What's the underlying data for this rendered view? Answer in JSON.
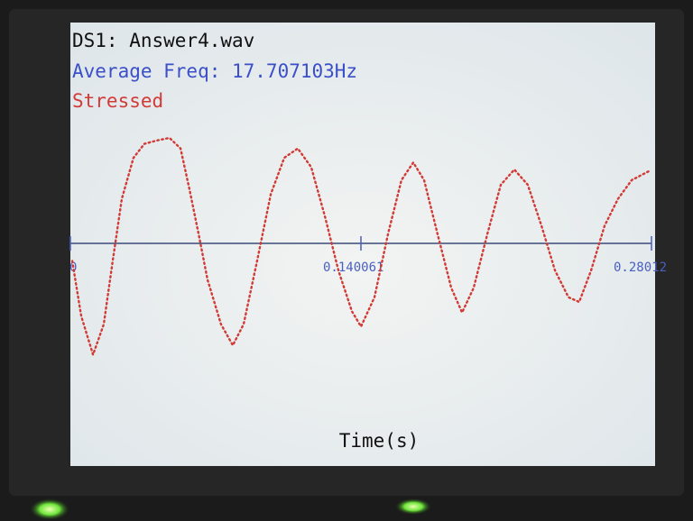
{
  "chart_data": {
    "type": "line",
    "title": "DS1: Answer4.wav",
    "subtitle": "Average Freq: 17.707103Hz",
    "annotation": "Stressed",
    "xlabel": "Time(s)",
    "color": "#d23a36",
    "axis_color": "#3a4a78",
    "tick_color": "#4a5fc0",
    "xlim": [
      0,
      0.28012
    ],
    "xticks": [
      0,
      0.140061,
      0.28012
    ],
    "ylim": [
      -1.5,
      1.5
    ],
    "x": [
      0.0009,
      0.0052,
      0.0109,
      0.0161,
      0.0204,
      0.0248,
      0.0304,
      0.0357,
      0.0422,
      0.0478,
      0.0531,
      0.0574,
      0.0618,
      0.0661,
      0.0726,
      0.0783,
      0.0835,
      0.09,
      0.0966,
      0.1031,
      0.1096,
      0.1161,
      0.1227,
      0.1292,
      0.1357,
      0.1401,
      0.1466,
      0.1531,
      0.1596,
      0.1653,
      0.1705,
      0.177,
      0.1836,
      0.1888,
      0.1944,
      0.201,
      0.2075,
      0.214,
      0.2205,
      0.2271,
      0.2336,
      0.2401,
      0.2453,
      0.251,
      0.2575,
      0.264,
      0.2706,
      0.2793
    ],
    "values": [
      -0.15,
      -0.62,
      -0.95,
      -0.69,
      -0.15,
      0.38,
      0.73,
      0.85,
      0.88,
      0.9,
      0.81,
      0.46,
      0.08,
      -0.31,
      -0.69,
      -0.87,
      -0.69,
      -0.15,
      0.42,
      0.73,
      0.81,
      0.65,
      0.23,
      -0.23,
      -0.58,
      -0.71,
      -0.46,
      0.08,
      0.54,
      0.69,
      0.54,
      0.08,
      -0.38,
      -0.59,
      -0.38,
      0.08,
      0.5,
      0.63,
      0.5,
      0.15,
      -0.23,
      -0.46,
      -0.5,
      -0.23,
      0.15,
      0.38,
      0.54,
      0.62
    ]
  }
}
